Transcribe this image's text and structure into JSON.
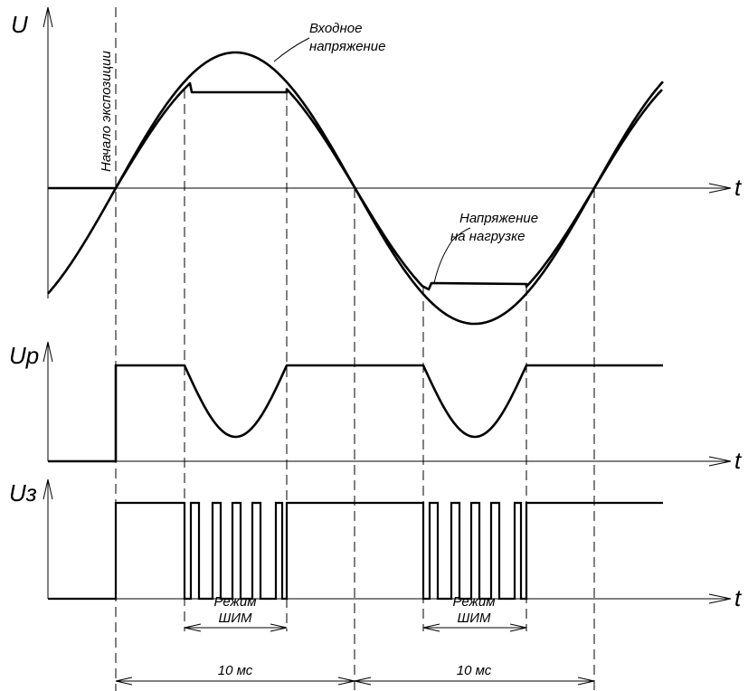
{
  "top_axis_label": "U",
  "middle_axis_label": "Up",
  "bottom_axis_label": "Uз",
  "time_label": "t",
  "input_voltage_label": [
    "Входное",
    "напряжение"
  ],
  "load_voltage_label": [
    "Напряжение",
    "на нагрузке"
  ],
  "exposure_start_label": "Начало экспозиции",
  "pwm_label": [
    "Режим",
    "ШИМ"
  ],
  "interval_label": "10 мс"
}
